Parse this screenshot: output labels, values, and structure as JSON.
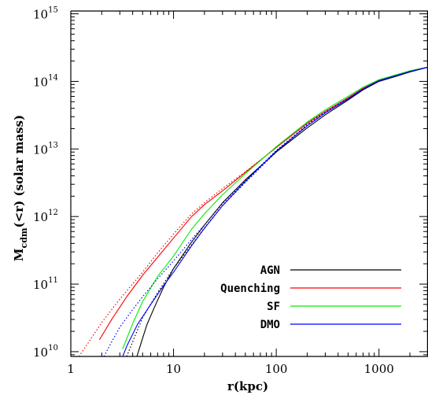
{
  "chart_data": {
    "type": "line",
    "title": "",
    "xlabel": "r(kpc)",
    "ylabel_base": "M",
    "ylabel_sub": "cdm",
    "ylabel_rest": "(<r) (solar mass)",
    "x_scale": "log",
    "y_scale": "log",
    "xlim": [
      1,
      3000
    ],
    "ylim": [
      8500000000.0,
      1100000000000000.0
    ],
    "x_ticks": [
      {
        "value": 1,
        "label": "1"
      },
      {
        "value": 10,
        "label": "10"
      },
      {
        "value": 100,
        "label": "100"
      },
      {
        "value": 1000,
        "label": "1000"
      }
    ],
    "y_ticks": [
      {
        "value": 10000000000.0,
        "base": "10",
        "exp": "10"
      },
      {
        "value": 100000000000.0,
        "base": "10",
        "exp": "11"
      },
      {
        "value": 1000000000000.0,
        "base": "10",
        "exp": "12"
      },
      {
        "value": 10000000000000.0,
        "base": "10",
        "exp": "13"
      },
      {
        "value": 100000000000000.0,
        "base": "10",
        "exp": "14"
      },
      {
        "value": 1000000000000000.0,
        "base": "10",
        "exp": "15"
      }
    ],
    "grid": false,
    "legend_position": "bottom-right",
    "series": [
      {
        "name": "AGN",
        "color": "#000000",
        "style": "solid",
        "points": [
          [
            4.4,
            8500000000.0
          ],
          [
            4.8,
            13000000000.0
          ],
          [
            5.5,
            25000000000.0
          ],
          [
            6.5,
            45000000000.0
          ],
          [
            8,
            90000000000.0
          ],
          [
            10,
            170000000000.0
          ],
          [
            15,
            420000000000.0
          ],
          [
            20,
            750000000000.0
          ],
          [
            30,
            1600000000000.0
          ],
          [
            50,
            3500000000000.0
          ],
          [
            100,
            9000000000000.0
          ],
          [
            200,
            20500000000000.0
          ],
          [
            300,
            32000000000000.0
          ],
          [
            500,
            53000000000000.0
          ],
          [
            700,
            75000000000000.0
          ],
          [
            1000,
            100000000000000.0
          ],
          [
            1500,
            120000000000000.0
          ],
          [
            2000,
            138000000000000.0
          ],
          [
            3000,
            162000000000000.0
          ]
        ]
      },
      {
        "name": "",
        "color": "#000000",
        "style": "dotted",
        "points": [
          [
            3.5,
            8500000000.0
          ],
          [
            4,
            14000000000.0
          ],
          [
            5,
            32000000000.0
          ],
          [
            7,
            75000000000.0
          ],
          [
            10,
            170000000000.0
          ],
          [
            15,
            380000000000.0
          ],
          [
            20,
            680000000000.0
          ],
          [
            30,
            1450000000000.0
          ],
          [
            50,
            3200000000000.0
          ],
          [
            100,
            9000000000000.0
          ],
          [
            200,
            23000000000000.0
          ],
          [
            300,
            35000000000000.0
          ],
          [
            500,
            55000000000000.0
          ],
          [
            700,
            77000000000000.0
          ],
          [
            1000,
            102000000000000.0
          ],
          [
            2000,
            140000000000000.0
          ],
          [
            3000,
            162000000000000.0
          ]
        ]
      },
      {
        "name": "Quenching",
        "color": "#ff0000",
        "style": "solid",
        "points": [
          [
            1.9,
            15000000000.0
          ],
          [
            2.5,
            30000000000.0
          ],
          [
            3.5,
            65000000000.0
          ],
          [
            5,
            135000000000.0
          ],
          [
            7,
            250000000000.0
          ],
          [
            10,
            480000000000.0
          ],
          [
            15,
            1000000000000.0
          ],
          [
            20,
            1500000000000.0
          ],
          [
            30,
            2400000000000.0
          ],
          [
            50,
            4500000000000.0
          ],
          [
            100,
            10500000000000.0
          ],
          [
            200,
            24000000000000.0
          ],
          [
            300,
            36000000000000.0
          ],
          [
            500,
            57000000000000.0
          ],
          [
            700,
            79000000000000.0
          ],
          [
            1000,
            104000000000000.0
          ],
          [
            2000,
            142000000000000.0
          ],
          [
            3000,
            163000000000000.0
          ]
        ]
      },
      {
        "name": "",
        "color": "#ff0000",
        "style": "dotted",
        "points": [
          [
            1.2,
            8500000000.0
          ],
          [
            1.5,
            14000000000.0
          ],
          [
            2,
            27000000000.0
          ],
          [
            3,
            60000000000.0
          ],
          [
            5,
            150000000000.0
          ],
          [
            7,
            290000000000.0
          ],
          [
            10,
            550000000000.0
          ],
          [
            15,
            1100000000000.0
          ],
          [
            20,
            1600000000000.0
          ],
          [
            30,
            2600000000000.0
          ],
          [
            50,
            4600000000000.0
          ],
          [
            100,
            10500000000000.0
          ],
          [
            200,
            24500000000000.0
          ],
          [
            300,
            36000000000000.0
          ],
          [
            500,
            57000000000000.0
          ],
          [
            700,
            79000000000000.0
          ],
          [
            1000,
            104000000000000.0
          ],
          [
            2000,
            142000000000000.0
          ],
          [
            3000,
            163000000000000.0
          ]
        ]
      },
      {
        "name": "SF",
        "color": "#00ee00",
        "style": "solid",
        "points": [
          [
            3.2,
            11000000000.0
          ],
          [
            4,
            26000000000.0
          ],
          [
            5,
            55000000000.0
          ],
          [
            7,
            130000000000.0
          ],
          [
            10,
            260000000000.0
          ],
          [
            15,
            650000000000.0
          ],
          [
            20,
            1100000000000.0
          ],
          [
            30,
            2100000000000.0
          ],
          [
            50,
            4300000000000.0
          ],
          [
            100,
            10800000000000.0
          ],
          [
            200,
            25000000000000.0
          ],
          [
            300,
            38000000000000.0
          ],
          [
            500,
            60000000000000.0
          ],
          [
            700,
            82000000000000.0
          ],
          [
            1000,
            106000000000000.0
          ],
          [
            2000,
            143000000000000.0
          ],
          [
            3000,
            163000000000000.0
          ]
        ]
      },
      {
        "name": "DMO",
        "color": "#0000ff",
        "style": "solid",
        "points": [
          [
            3.2,
            8500000000.0
          ],
          [
            3.5,
            12000000000.0
          ],
          [
            4.5,
            26000000000.0
          ],
          [
            6,
            50000000000.0
          ],
          [
            8,
            95000000000.0
          ],
          [
            10,
            150000000000.0
          ],
          [
            15,
            370000000000.0
          ],
          [
            20,
            670000000000.0
          ],
          [
            30,
            1450000000000.0
          ],
          [
            50,
            3300000000000.0
          ],
          [
            100,
            9300000000000.0
          ],
          [
            200,
            22000000000000.0
          ],
          [
            300,
            34000000000000.0
          ],
          [
            500,
            55000000000000.0
          ],
          [
            700,
            77000000000000.0
          ],
          [
            1000,
            102000000000000.0
          ],
          [
            2000,
            140000000000000.0
          ],
          [
            3000,
            162000000000000.0
          ]
        ]
      },
      {
        "name": "",
        "color": "#0000ff",
        "style": "dotted",
        "points": [
          [
            2.1,
            8500000000.0
          ],
          [
            2.5,
            14000000000.0
          ],
          [
            3,
            23000000000.0
          ],
          [
            4,
            42000000000.0
          ],
          [
            5,
            65000000000.0
          ],
          [
            7,
            120000000000.0
          ],
          [
            10,
            220000000000.0
          ],
          [
            15,
            460000000000.0
          ],
          [
            20,
            750000000000.0
          ],
          [
            30,
            1550000000000.0
          ],
          [
            50,
            3400000000000.0
          ],
          [
            100,
            9500000000000.0
          ],
          [
            200,
            23000000000000.0
          ],
          [
            300,
            35000000000000.0
          ],
          [
            500,
            56000000000000.0
          ],
          [
            700,
            78000000000000.0
          ],
          [
            1000,
            103000000000000.0
          ],
          [
            2000,
            141000000000000.0
          ],
          [
            3000,
            162000000000000.0
          ]
        ]
      }
    ]
  }
}
